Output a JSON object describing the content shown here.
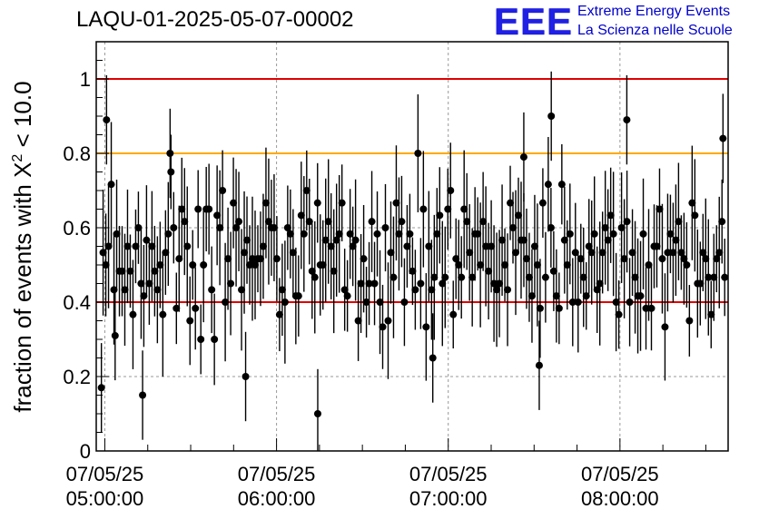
{
  "title": "LAQU-01-2025-05-07-00002",
  "logo": {
    "letters": "EEE",
    "line1": "Extreme Energy Events",
    "line2": "La Scienza nelle Scuole"
  },
  "colors": {
    "ref_line_red": "#e00000",
    "ref_line_orange": "#ffaa00",
    "marker": "#000000",
    "logo_blue": "#1f1fe6"
  },
  "chart_data": {
    "type": "scatter",
    "title": "LAQU-01-2025-05-07-00002",
    "xlabel": "",
    "ylabel_prefix": "fraction of events with ",
    "ylabel_chi": "X",
    "ylabel_sup": "2",
    "ylabel_suffix": " < 10.0",
    "ylim": [
      0,
      1.1
    ],
    "xlim_hours": [
      4.95,
      8.63
    ],
    "x_tick_labels": [
      {
        "date": "07/05/25",
        "time": "05:00:00",
        "hour": 5
      },
      {
        "date": "07/05/25",
        "time": "06:00:00",
        "hour": 6
      },
      {
        "date": "07/05/25",
        "time": "07:00:00",
        "hour": 7
      },
      {
        "date": "07/05/25",
        "time": "08:00:00",
        "hour": 8
      }
    ],
    "y_ticks": [
      {
        "value": 0,
        "label": "0"
      },
      {
        "value": 0.2,
        "label": "0.2"
      },
      {
        "value": 0.4,
        "label": "0.4"
      },
      {
        "value": 0.6,
        "label": "0.6"
      },
      {
        "value": 0.8,
        "label": "0.8"
      },
      {
        "value": 1,
        "label": "1"
      }
    ],
    "reference_lines": [
      {
        "value": 1.0,
        "color": "red"
      },
      {
        "value": 0.8,
        "color": "orange"
      },
      {
        "value": 0.4,
        "color": "red"
      }
    ],
    "grid": true,
    "n_points": 230,
    "seed": 20250507,
    "notable_points": [
      {
        "hour": 4.98,
        "y": 0.17
      },
      {
        "hour": 5.01,
        "y": 0.89
      },
      {
        "hour": 5.06,
        "y": 0.31
      },
      {
        "hour": 5.22,
        "y": 0.15
      },
      {
        "hour": 5.38,
        "y": 0.8
      },
      {
        "hour": 5.82,
        "y": 0.2
      },
      {
        "hour": 6.24,
        "y": 0.1
      },
      {
        "hour": 6.91,
        "y": 0.25
      },
      {
        "hour": 7.44,
        "y": 0.79
      },
      {
        "hour": 7.53,
        "y": 0.23
      },
      {
        "hour": 7.6,
        "y": 0.9
      },
      {
        "hour": 8.04,
        "y": 0.89
      },
      {
        "hour": 8.6,
        "y": 0.84
      }
    ]
  }
}
